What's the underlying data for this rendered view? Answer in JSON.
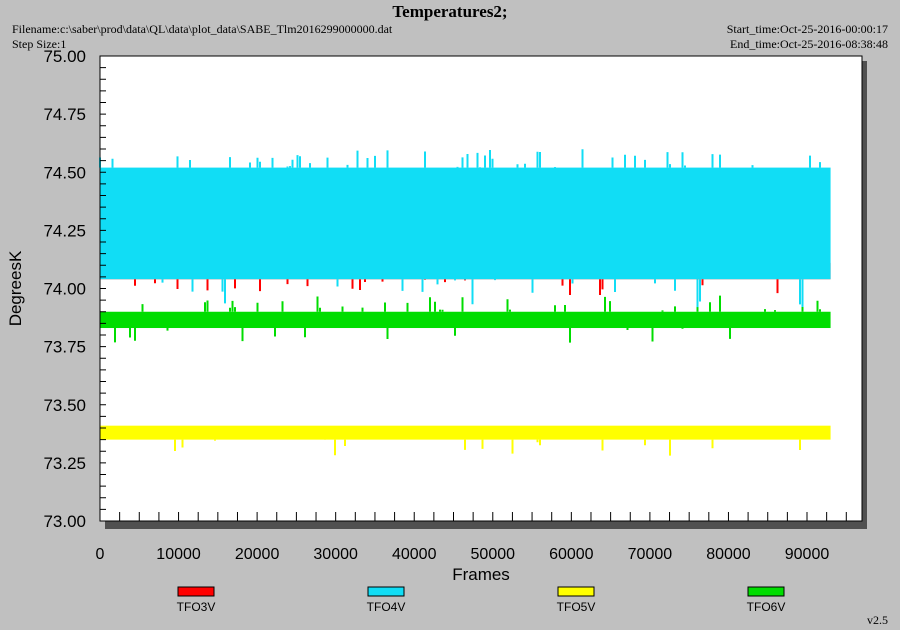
{
  "header": {
    "title": "Temperatures2;",
    "filename": "Filename:c:\\saber\\prod\\data\\QL\\data\\plot_data\\SABE_Tlm2016299000000.dat",
    "step_size": "Step Size:1",
    "start_time": "Start_time:Oct-25-2016-00:00:17",
    "end_time": "End_time:Oct-25-2016-08:38:48"
  },
  "version": "v2.5",
  "chart_data": {
    "type": "line",
    "title": "Temperatures2;",
    "xlabel": "Frames",
    "ylabel": "DegreesK",
    "xlim": [
      0,
      97000
    ],
    "ylim": [
      73.0,
      75.0
    ],
    "x_ticks": [
      0,
      10000,
      20000,
      30000,
      40000,
      50000,
      60000,
      70000,
      80000,
      90000
    ],
    "x_tick_labels": [
      "0",
      "10000",
      "20000",
      "30000",
      "40000",
      "50000",
      "60000",
      "70000",
      "80000",
      "90000"
    ],
    "y_ticks": [
      73.0,
      73.25,
      73.5,
      73.75,
      74.0,
      74.25,
      74.5,
      74.75,
      75.0
    ],
    "y_tick_labels": [
      "73.00",
      "73.25",
      "73.50",
      "73.75",
      "74.00",
      "74.25",
      "74.50",
      "74.75",
      "75.00"
    ],
    "grid": false,
    "legend_position": "bottom",
    "series": [
      {
        "name": "TFO3V",
        "color": "#ff0000",
        "x_start": 0,
        "x_end": 93000,
        "typical_range": [
          74.04,
          74.11
        ],
        "extremes": [
          73.97,
          74.18
        ]
      },
      {
        "name": "TFO4V",
        "color": "#11ddf5",
        "x_start": 0,
        "x_end": 93000,
        "typical_range": [
          74.04,
          74.52
        ],
        "extremes": [
          73.92,
          74.6
        ]
      },
      {
        "name": "TFO5V",
        "color": "#ffff00",
        "x_start": 0,
        "x_end": 93000,
        "typical_range": [
          73.35,
          73.41
        ],
        "extremes": [
          73.28,
          73.41
        ]
      },
      {
        "name": "TFO6V",
        "color": "#00dd00",
        "x_start": 0,
        "x_end": 93000,
        "typical_range": [
          73.83,
          73.9
        ],
        "extremes": [
          73.76,
          73.97
        ]
      }
    ]
  }
}
